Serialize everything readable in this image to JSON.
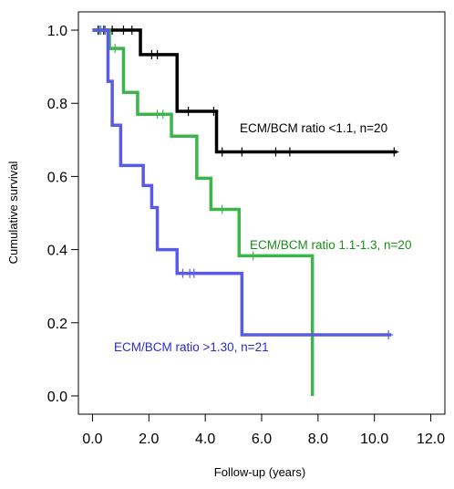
{
  "chart_data": {
    "type": "line",
    "title": "",
    "xlabel": "Follow-up (years)",
    "ylabel": "Cumulative survival",
    "xlim": [
      -0.5,
      12.5
    ],
    "ylim": [
      -0.05,
      1.05
    ],
    "x_ticks": [
      "0.0",
      "2.0",
      "4.0",
      "6.0",
      "8.0",
      "10.0",
      "12.0"
    ],
    "y_ticks": [
      "0.0",
      "0.2",
      "0.4",
      "0.6",
      "0.8",
      "1.0"
    ],
    "grid": false,
    "series": [
      {
        "name": "ECM/BCM ratio <1.1, n=20",
        "color": "#000000",
        "steps": [
          [
            0,
            1.0
          ],
          [
            1.7,
            0.933
          ],
          [
            3.0,
            0.778
          ],
          [
            4.4,
            0.667
          ],
          [
            10.8,
            0.667
          ]
        ],
        "censored": [
          [
            0.2,
            1.0
          ],
          [
            0.4,
            1.0
          ],
          [
            0.7,
            1.0
          ],
          [
            1.1,
            1.0
          ],
          [
            1.4,
            1.0
          ],
          [
            2.1,
            0.933
          ],
          [
            2.3,
            0.933
          ],
          [
            3.4,
            0.778
          ],
          [
            4.3,
            0.778
          ],
          [
            4.6,
            0.667
          ],
          [
            5.3,
            0.667
          ],
          [
            6.5,
            0.667
          ],
          [
            7.0,
            0.667
          ],
          [
            10.7,
            0.667
          ]
        ]
      },
      {
        "name": "ECM/BCM ratio 1.1-1.3, n=20",
        "color": "#3cb54a",
        "steps": [
          [
            0,
            1.0
          ],
          [
            0.6,
            0.95
          ],
          [
            1.1,
            0.83
          ],
          [
            1.6,
            0.77
          ],
          [
            2.8,
            0.71
          ],
          [
            3.7,
            0.595
          ],
          [
            4.2,
            0.51
          ],
          [
            5.2,
            0.383
          ],
          [
            7.8,
            0.0
          ]
        ],
        "censored": [
          [
            0.3,
            1.0
          ],
          [
            0.8,
            0.95
          ],
          [
            2.3,
            0.77
          ],
          [
            2.5,
            0.77
          ],
          [
            4.6,
            0.51
          ],
          [
            5.7,
            0.383
          ]
        ]
      },
      {
        "name": "ECM/BCM ratio >1.30, n=21",
        "color": "#5a5ae8",
        "steps": [
          [
            0,
            1.0
          ],
          [
            0.55,
            0.86
          ],
          [
            0.7,
            0.74
          ],
          [
            1.0,
            0.63
          ],
          [
            1.8,
            0.575
          ],
          [
            2.1,
            0.515
          ],
          [
            2.3,
            0.4
          ],
          [
            3.0,
            0.335
          ],
          [
            5.3,
            0.167
          ],
          [
            10.6,
            0.167
          ]
        ],
        "censored": [
          [
            0.25,
            1.0
          ],
          [
            0.45,
            1.0
          ],
          [
            3.2,
            0.335
          ],
          [
            3.45,
            0.335
          ],
          [
            3.6,
            0.335
          ],
          [
            10.5,
            0.167
          ]
        ]
      }
    ],
    "series_label_colors": [
      "#000000",
      "#1a8c1a",
      "#2a2acc"
    ]
  }
}
